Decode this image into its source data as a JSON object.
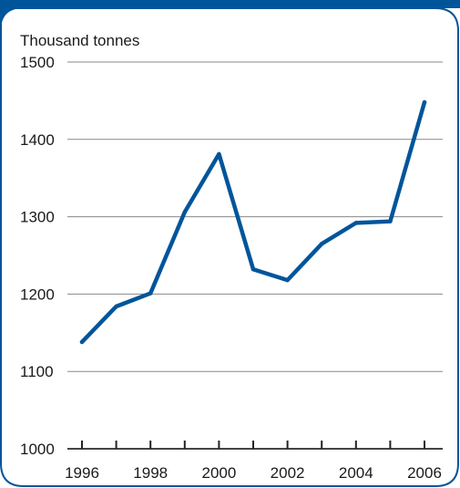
{
  "chart_data": {
    "type": "line",
    "ylabel": "Thousand tonnes",
    "xlabel": "",
    "title": "",
    "x": [
      1996,
      1997,
      1998,
      1999,
      2000,
      2001,
      2002,
      2003,
      2004,
      2005,
      2006
    ],
    "x_tick_labels": [
      "1996",
      "1998",
      "2000",
      "2002",
      "2004",
      "2006"
    ],
    "y_tick_labels": [
      "1000",
      "1100",
      "1200",
      "1300",
      "1400",
      "1500"
    ],
    "series": [
      {
        "values": [
          1138,
          1184,
          1201,
          1306,
          1381,
          1232,
          1218,
          1265,
          1292,
          1294,
          1448
        ],
        "color": "#00559a"
      }
    ],
    "xlim": [
      1996,
      2006
    ],
    "ylim": [
      1000,
      1500
    ],
    "y_ticks": [
      1000,
      1100,
      1200,
      1300,
      1400,
      1500
    ],
    "grid": "horizontal",
    "colors": {
      "accent": "#00559a",
      "frame": "#00559a",
      "grid": "#888888",
      "axis": "#444444"
    }
  }
}
